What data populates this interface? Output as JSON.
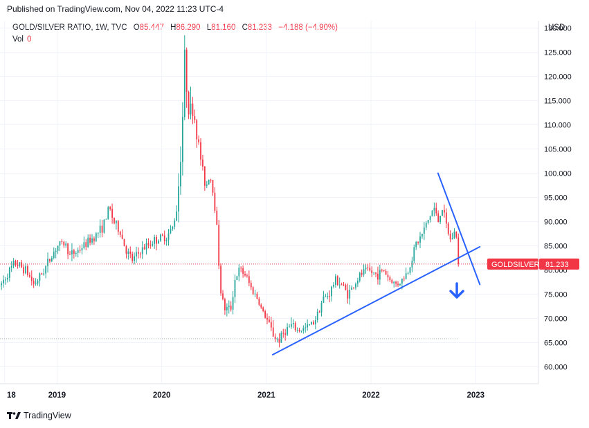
{
  "header": {
    "published": "Published on TradingView.com, Nov 04, 2022 11:23 UTC-4"
  },
  "legend": {
    "symbol": "GOLD/SILVER RATIO, 1W, TVC",
    "open_label": "O",
    "open": "85.447",
    "high_label": "H",
    "high": "86.290",
    "low_label": "L",
    "low": "81.160",
    "close_label": "C",
    "close": "81.233",
    "change": "−4.188 (−4.90%)",
    "vol_label": "Vol",
    "vol": "0"
  },
  "currency": "USD",
  "price_tag": {
    "name": "GOLDSILVER",
    "value": "81.233",
    "color": "#f23645"
  },
  "footer": {
    "brand": "TradingView",
    "logo_icon": "tradingview-logo-icon"
  },
  "colors": {
    "up": "#26a69a",
    "down": "#f23645",
    "trendline": "#2962ff",
    "arrow": "#2962ff"
  },
  "chart_data": {
    "type": "candlestick",
    "interval": "1W",
    "y_ticks": [
      "60.000",
      "65.000",
      "70.000",
      "75.000",
      "80.000",
      "85.000",
      "90.000",
      "95.000",
      "100.000",
      "105.000",
      "110.000",
      "115.000",
      "120.000",
      "125.000",
      "130.000"
    ],
    "ylim": [
      56.5,
      131.5
    ],
    "x_ticks": [
      {
        "label": "18",
        "t": 2018.5
      },
      {
        "label": "2019",
        "t": 2019.0
      },
      {
        "label": "2020",
        "t": 2020.0
      },
      {
        "label": "2021",
        "t": 2021.0
      },
      {
        "label": "2022",
        "t": 2022.0
      },
      {
        "label": "2023",
        "t": 2023.0
      }
    ],
    "xlim": [
      2018.455,
      2023.6
    ],
    "last_price": 81.233,
    "path": [
      [
        2018.45,
        76.5
      ],
      [
        2018.52,
        79
      ],
      [
        2018.6,
        81.5
      ],
      [
        2018.7,
        80
      ],
      [
        2018.78,
        77
      ],
      [
        2018.85,
        79
      ],
      [
        2018.95,
        83
      ],
      [
        2019.0,
        85
      ],
      [
        2019.08,
        85.5
      ],
      [
        2019.12,
        83
      ],
      [
        2019.2,
        84
      ],
      [
        2019.28,
        85.5
      ],
      [
        2019.36,
        87
      ],
      [
        2019.44,
        89
      ],
      [
        2019.5,
        93
      ],
      [
        2019.54,
        90
      ],
      [
        2019.6,
        88
      ],
      [
        2019.66,
        84
      ],
      [
        2019.72,
        82
      ],
      [
        2019.8,
        84
      ],
      [
        2019.86,
        85
      ],
      [
        2019.92,
        86
      ],
      [
        2019.98,
        86.5
      ],
      [
        2020.05,
        87
      ],
      [
        2020.1,
        88.5
      ],
      [
        2020.14,
        92
      ],
      [
        2020.17,
        100
      ],
      [
        2020.2,
        112
      ],
      [
        2020.22,
        124
      ],
      [
        2020.24,
        118
      ],
      [
        2020.27,
        112
      ],
      [
        2020.3,
        114
      ],
      [
        2020.34,
        108
      ],
      [
        2020.38,
        102
      ],
      [
        2020.42,
        97
      ],
      [
        2020.46,
        100
      ],
      [
        2020.5,
        95
      ],
      [
        2020.53,
        88
      ],
      [
        2020.56,
        76
      ],
      [
        2020.6,
        72
      ],
      [
        2020.66,
        72
      ],
      [
        2020.7,
        78
      ],
      [
        2020.74,
        80
      ],
      [
        2020.8,
        79
      ],
      [
        2020.86,
        76
      ],
      [
        2020.92,
        74
      ],
      [
        2020.96,
        71.5
      ],
      [
        2021.0,
        70
      ],
      [
        2021.04,
        68
      ],
      [
        2021.08,
        66
      ],
      [
        2021.12,
        65.5
      ],
      [
        2021.18,
        67.5
      ],
      [
        2021.24,
        68.5
      ],
      [
        2021.3,
        67.5
      ],
      [
        2021.38,
        68
      ],
      [
        2021.46,
        69.5
      ],
      [
        2021.54,
        74
      ],
      [
        2021.6,
        75
      ],
      [
        2021.66,
        78
      ],
      [
        2021.72,
        77
      ],
      [
        2021.78,
        75
      ],
      [
        2021.84,
        77
      ],
      [
        2021.9,
        79
      ],
      [
        2021.96,
        80
      ],
      [
        2022.0,
        79.5
      ],
      [
        2022.06,
        79
      ],
      [
        2022.12,
        80
      ],
      [
        2022.18,
        78
      ],
      [
        2022.24,
        77
      ],
      [
        2022.3,
        78
      ],
      [
        2022.36,
        80
      ],
      [
        2022.42,
        85
      ],
      [
        2022.48,
        87
      ],
      [
        2022.52,
        89
      ],
      [
        2022.56,
        91
      ],
      [
        2022.6,
        93
      ],
      [
        2022.64,
        90
      ],
      [
        2022.68,
        93
      ],
      [
        2022.72,
        89
      ],
      [
        2022.76,
        86
      ],
      [
        2022.8,
        88
      ],
      [
        2022.84,
        85.4
      ]
    ],
    "annotations": [
      {
        "type": "trendline",
        "name": "support-trendline",
        "from": [
          2021.06,
          62.5
        ],
        "to": [
          2023.04,
          84.8
        ]
      },
      {
        "type": "trendline",
        "name": "resistance-trendline",
        "from": [
          2022.64,
          100
        ],
        "to": [
          2023.04,
          77
        ]
      },
      {
        "type": "arrow",
        "name": "down-arrow",
        "at": [
          2022.82,
          75.5
        ]
      }
    ],
    "reference_lines": [
      {
        "name": "last-price-line",
        "y": 81.233,
        "color": "#f23645"
      },
      {
        "name": "base-dotted-line",
        "y": 65.8,
        "color": "#b2b5be"
      }
    ]
  }
}
